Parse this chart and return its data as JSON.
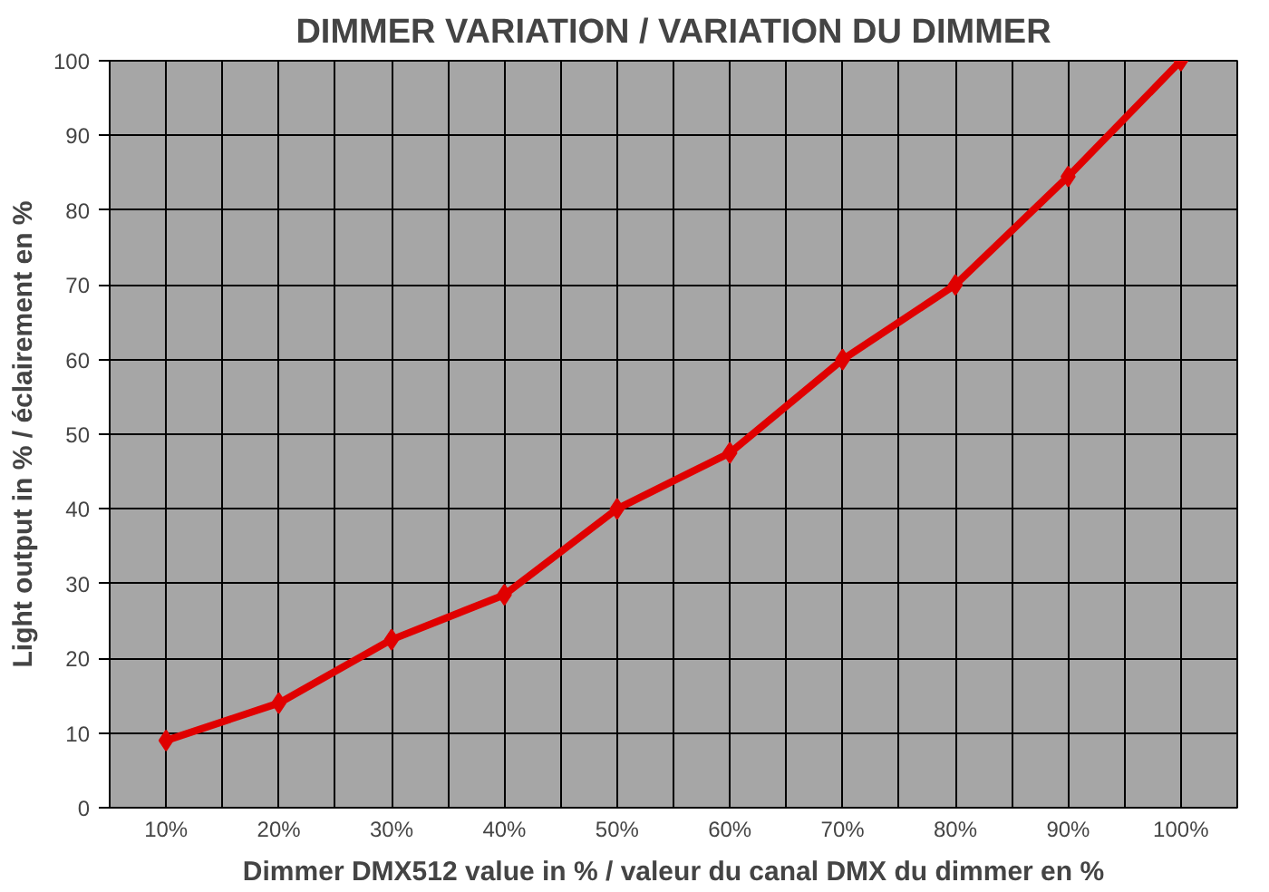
{
  "chart_data": {
    "type": "line",
    "title": "DIMMER VARIATION / VARIATION DU DIMMER",
    "xlabel": "Dimmer DMX512 value in % / valeur du canal DMX du dimmer en %",
    "ylabel": "Light output in % / éclairement en %",
    "categories": [
      "10%",
      "20%",
      "30%",
      "40%",
      "50%",
      "60%",
      "70%",
      "80%",
      "90%",
      "100%"
    ],
    "series": [
      {
        "color": "#e00000",
        "values": [
          9,
          14,
          22.5,
          28.5,
          40,
          47.5,
          60,
          70,
          84.5,
          100
        ]
      }
    ],
    "ylim": [
      0,
      100
    ],
    "yticks": [
      0,
      10,
      20,
      30,
      40,
      50,
      60,
      70,
      80,
      90,
      100
    ],
    "grid": true,
    "marker": "diamond",
    "line_style": "solid"
  }
}
